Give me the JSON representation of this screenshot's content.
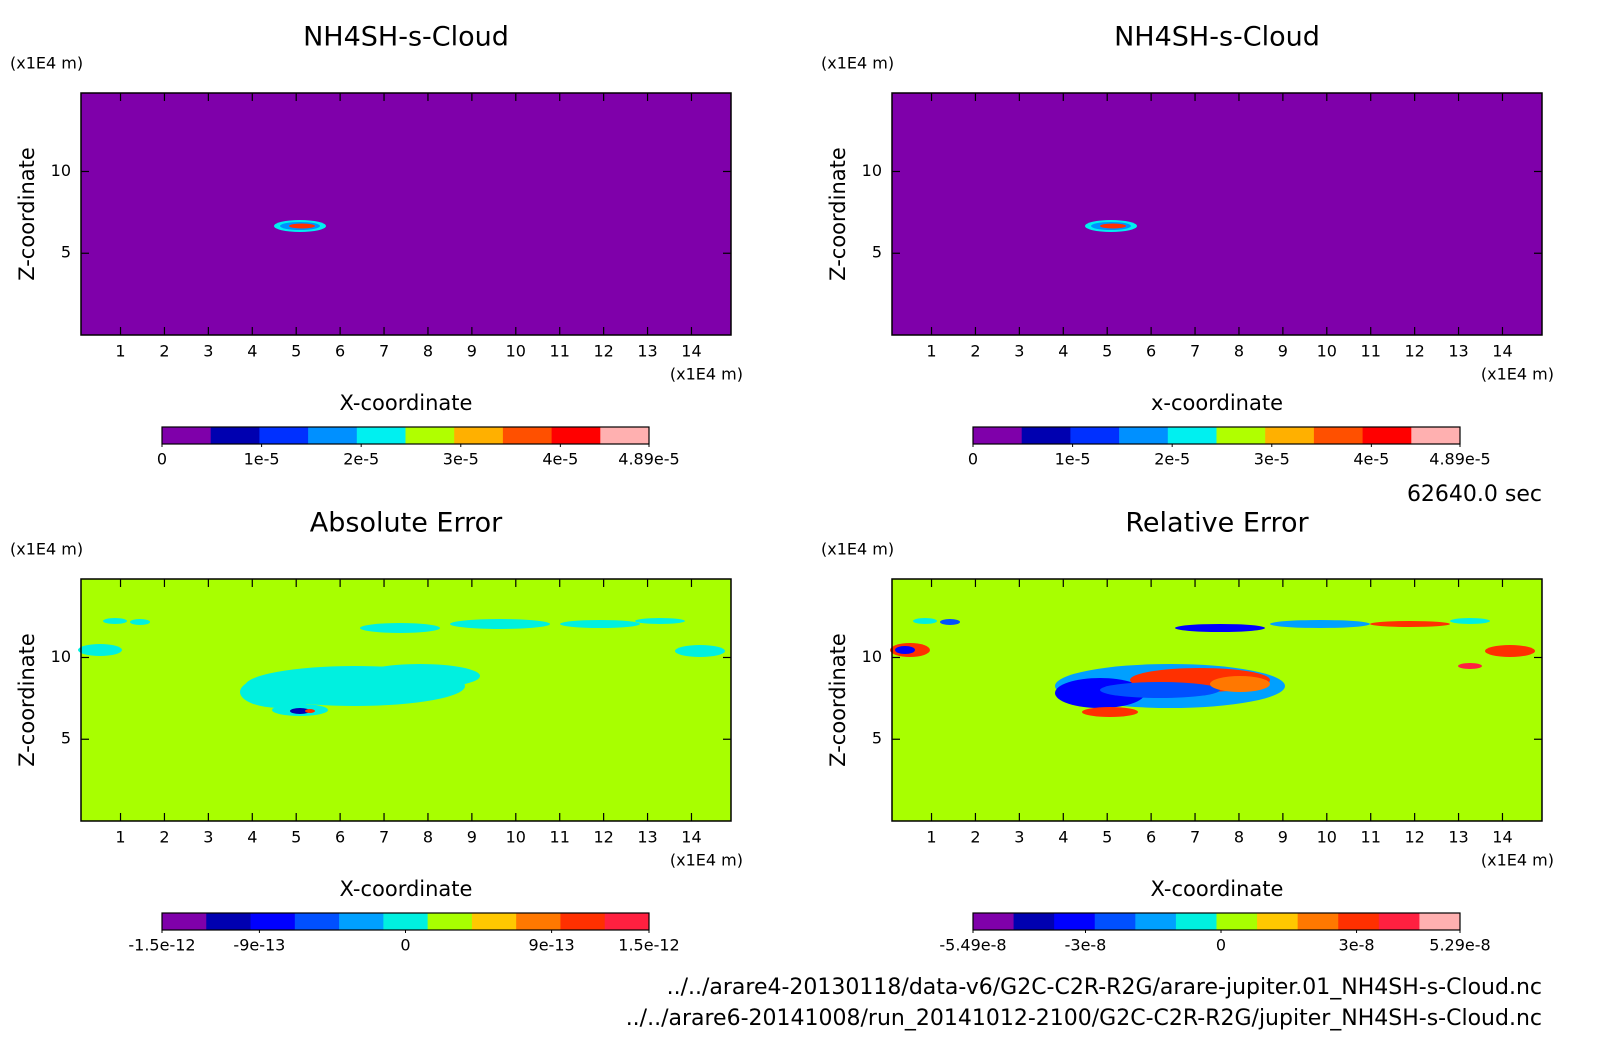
{
  "chart_data": [
    {
      "type": "contour",
      "title": "NH4SH-s-Cloud",
      "xlabel": "X-coordinate",
      "ylabel": "Z-coordinate",
      "xunit": "(x1E4 m)",
      "yunit": "(x1E4 m)",
      "xlim": [
        0.1,
        14.9
      ],
      "xticks": [
        1,
        2,
        3,
        4,
        5,
        6,
        7,
        8,
        9,
        10,
        11,
        12,
        13,
        14
      ],
      "ylim": [
        0,
        14.8
      ],
      "yticks": [
        5,
        10
      ],
      "field_color": "#7f00aa",
      "colorbar": {
        "colors": [
          "#7f00aa",
          "#0000b0",
          "#0030ff",
          "#0090ff",
          "#00f0f0",
          "#b0ff00",
          "#ffb000",
          "#ff5000",
          "#ff0000",
          "#ffb0b0"
        ],
        "lim": [
          0,
          4.89e-05
        ],
        "ticks": [
          0,
          {
            "value": 1e-05,
            "label": "1e-5"
          },
          {
            "value": 2e-05,
            "label": "2e-5"
          },
          {
            "value": 3e-05,
            "label": "3e-5"
          },
          {
            "value": 4e-05,
            "label": "4e-5"
          },
          {
            "value": 4.89e-05,
            "label": "4.89e-5"
          }
        ]
      }
    },
    {
      "type": "contour",
      "title": "NH4SH-s-Cloud",
      "xlabel": "x-coordinate",
      "ylabel": "Z-coordinate",
      "xunit": "(x1E4 m)",
      "yunit": "(x1E4 m)",
      "xlim": [
        0.1,
        14.9
      ],
      "xticks": [
        1,
        2,
        3,
        4,
        5,
        6,
        7,
        8,
        9,
        10,
        11,
        12,
        13,
        14
      ],
      "ylim": [
        0,
        14.8
      ],
      "yticks": [
        5,
        10
      ],
      "field_color": "#7f00aa",
      "colorbar": {
        "colors": [
          "#7f00aa",
          "#0000b0",
          "#0030ff",
          "#0090ff",
          "#00f0f0",
          "#b0ff00",
          "#ffb000",
          "#ff5000",
          "#ff0000",
          "#ffb0b0"
        ],
        "lim": [
          0,
          4.89e-05
        ],
        "ticks": [
          0,
          {
            "value": 1e-05,
            "label": "1e-5"
          },
          {
            "value": 2e-05,
            "label": "2e-5"
          },
          {
            "value": 3e-05,
            "label": "3e-5"
          },
          {
            "value": 4e-05,
            "label": "4e-5"
          },
          {
            "value": 4.89e-05,
            "label": "4.89e-5"
          }
        ]
      }
    },
    {
      "type": "contour",
      "title": "Absolute Error",
      "xlabel": "X-coordinate",
      "ylabel": "Z-coordinate",
      "xunit": "(x1E4 m)",
      "yunit": "(x1E4 m)",
      "xlim": [
        0.1,
        14.9
      ],
      "xticks": [
        1,
        2,
        3,
        4,
        5,
        6,
        7,
        8,
        9,
        10,
        11,
        12,
        13,
        14
      ],
      "ylim": [
        0,
        14.8
      ],
      "yticks": [
        5,
        10
      ],
      "field_color": "#a8ff00",
      "colorbar": {
        "colors": [
          "#7f00aa",
          "#0000b0",
          "#0000ff",
          "#0050ff",
          "#00a0ff",
          "#00f0e0",
          "#a8ff00",
          "#ffc800",
          "#ff7800",
          "#ff3000",
          "#ff2040"
        ],
        "lim": [
          -1.5e-12,
          1.5e-12
        ],
        "ticks": [
          {
            "value": -1.5e-12,
            "label": "-1.5e-12"
          },
          {
            "value": -9e-13,
            "label": "-9e-13"
          },
          0,
          {
            "value": 9e-13,
            "label": "9e-13"
          },
          {
            "value": 1.5e-12,
            "label": "1.5e-12"
          }
        ]
      }
    },
    {
      "type": "contour",
      "title": "Relative Error",
      "xlabel": "X-coordinate",
      "ylabel": "Z-coordinate",
      "xunit": "(x1E4 m)",
      "yunit": "(x1E4 m)",
      "xlim": [
        0.1,
        14.9
      ],
      "xticks": [
        1,
        2,
        3,
        4,
        5,
        6,
        7,
        8,
        9,
        10,
        11,
        12,
        13,
        14
      ],
      "ylim": [
        0,
        14.8
      ],
      "yticks": [
        5,
        10
      ],
      "field_color": "#a8ff00",
      "colorbar": {
        "colors": [
          "#7f00aa",
          "#0000b0",
          "#0000ff",
          "#0050ff",
          "#00a0ff",
          "#00f0e0",
          "#a8ff00",
          "#ffc800",
          "#ff7800",
          "#ff3000",
          "#ff2040",
          "#ffb0b0"
        ],
        "lim": [
          -5.49e-08,
          5.29e-08
        ],
        "ticks": [
          {
            "value": -5.49e-08,
            "label": "-5.49e-8"
          },
          {
            "value": -3e-08,
            "label": "-3e-8"
          },
          0,
          {
            "value": 3e-08,
            "label": "3e-8"
          },
          {
            "value": 5.29e-08,
            "label": "5.29e-8"
          }
        ]
      }
    }
  ],
  "annotations": {
    "time": "62640.0 sec",
    "files": [
      "../../arare4-20130118/data-v6/G2C-C2R-R2G/arare-jupiter.01_NH4SH-s-Cloud.nc",
      "../../arare6-20141008/run_20141012-2100/G2C-C2R-R2G/jupiter_NH4SH-s-Cloud.nc"
    ]
  }
}
